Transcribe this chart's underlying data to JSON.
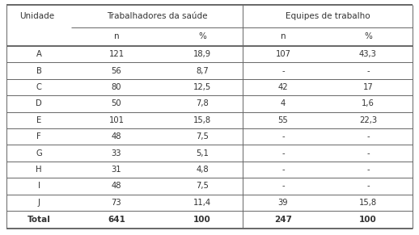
{
  "col_headers_group": [
    "Trabalhadores da saúde",
    "Equipes de trabalho"
  ],
  "col_headers_sub": [
    "n",
    "%",
    "n",
    "%"
  ],
  "row_header": "Unidade",
  "rows": [
    [
      "A",
      "121",
      "18,9",
      "107",
      "43,3"
    ],
    [
      "B",
      "56",
      "8,7",
      "-",
      "-"
    ],
    [
      "C",
      "80",
      "12,5",
      "42",
      "17"
    ],
    [
      "D",
      "50",
      "7,8",
      "4",
      "1,6"
    ],
    [
      "E",
      "101",
      "15,8",
      "55",
      "22,3"
    ],
    [
      "F",
      "48",
      "7,5",
      "-",
      "-"
    ],
    [
      "G",
      "33",
      "5,1",
      "-",
      "-"
    ],
    [
      "H",
      "31",
      "4,8",
      "-",
      "-"
    ],
    [
      "I",
      "48",
      "7,5",
      "-",
      "-"
    ],
    [
      "J",
      "73",
      "11,4",
      "39",
      "15,8"
    ]
  ],
  "total_row": [
    "Total",
    "641",
    "100",
    "247",
    "100"
  ],
  "bg_color": "#ffffff",
  "text_color": "#333333",
  "line_color": "#666666",
  "header_fontsize": 7.5,
  "cell_fontsize": 7.2,
  "total_fontsize": 7.5
}
